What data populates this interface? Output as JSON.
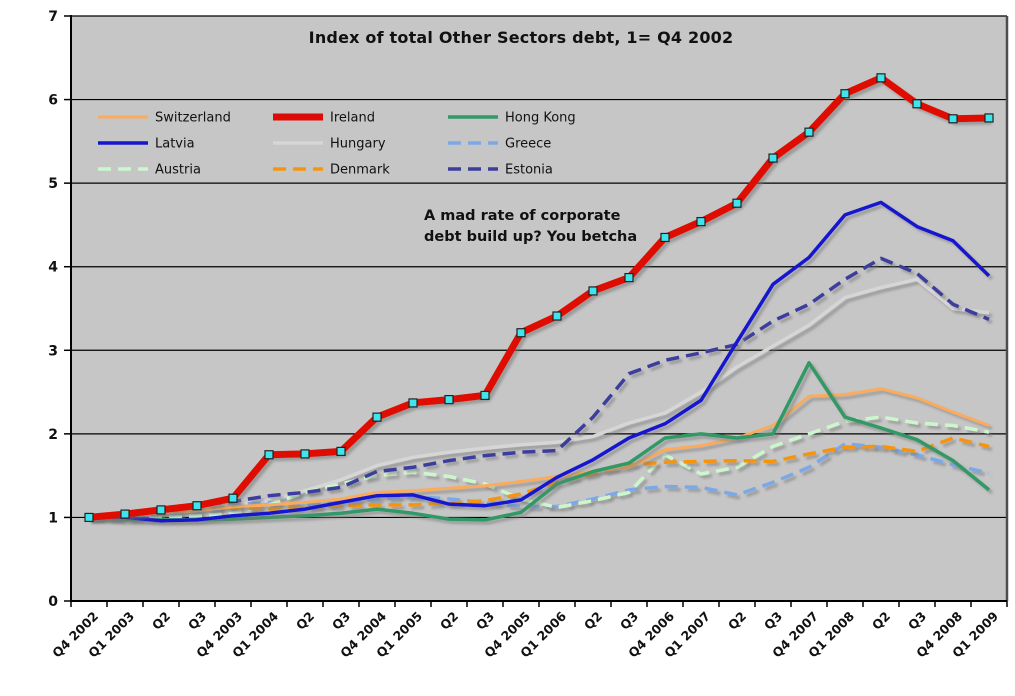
{
  "chart_data": {
    "type": "line",
    "title": "Index of total Other Sectors debt, 1= Q4 2002",
    "annotation_lines": [
      "A mad rate of corporate",
      "debt build up? You betcha"
    ],
    "categories": [
      "Q4 2002",
      "Q1 2003",
      "Q2",
      "Q3",
      "Q4 2003",
      "Q1 2004",
      "Q2",
      "Q3",
      "Q4 2004",
      "Q1 2005",
      "Q2",
      "Q3",
      "Q4 2005",
      "Q1 2006",
      "Q2",
      "Q3",
      "Q4 2006",
      "Q1 2007",
      "Q2",
      "Q3",
      "Q4 2007",
      "Q1 2008",
      "Q2",
      "Q3",
      "Q4 2008",
      "Q1 2009"
    ],
    "y_axis": {
      "min": 0,
      "max": 7,
      "step": 1,
      "tick_labels": [
        "0",
        "1",
        "2",
        "3",
        "4",
        "5",
        "6",
        "7"
      ]
    },
    "grid": true,
    "legend_position": "top-left-inside",
    "legend_order": [
      "Switzerland",
      "Ireland",
      "Hong Kong",
      "Latvia",
      "Hungary",
      "Greece",
      "Austria",
      "Denmark",
      "Estonia"
    ],
    "draw_order": [
      "Hungary",
      "Greece",
      "Austria",
      "Denmark",
      "Switzerland",
      "Hong Kong",
      "Estonia",
      "Latvia",
      "Ireland"
    ],
    "colors": {
      "plot_bg": "#c6c6c6",
      "gridline": "#000000",
      "axis": "#000000",
      "marker_fill": "#3fe4ec",
      "marker_border": "#222222"
    },
    "series": [
      {
        "name": "Switzerland",
        "color": "#faab5c",
        "style": "solid",
        "width": 3,
        "values": [
          1.0,
          1.02,
          1.05,
          1.08,
          1.13,
          1.15,
          1.18,
          1.22,
          1.3,
          1.32,
          1.35,
          1.38,
          1.43,
          1.49,
          1.55,
          1.6,
          1.81,
          1.86,
          1.95,
          2.1,
          2.45,
          2.47,
          2.54,
          2.43,
          2.26,
          2.1
        ]
      },
      {
        "name": "Ireland",
        "color": "#de0a05",
        "style": "solid",
        "width": 7,
        "marker": "square",
        "values": [
          1.0,
          1.04,
          1.09,
          1.14,
          1.23,
          1.75,
          1.76,
          1.79,
          2.2,
          2.37,
          2.41,
          2.46,
          3.21,
          3.41,
          3.71,
          3.87,
          4.35,
          4.54,
          4.76,
          5.3,
          5.61,
          6.07,
          6.26,
          5.95,
          5.77,
          5.78
        ]
      },
      {
        "name": "Hong Kong",
        "color": "#339966",
        "style": "solid",
        "width": 3.5,
        "values": [
          1.0,
          0.97,
          0.97,
          0.97,
          0.98,
          1.0,
          1.02,
          1.05,
          1.1,
          1.05,
          0.98,
          0.97,
          1.06,
          1.4,
          1.55,
          1.65,
          1.95,
          2.0,
          1.95,
          2.0,
          2.85,
          2.2,
          2.07,
          1.93,
          1.68,
          1.33
        ]
      },
      {
        "name": "Latvia",
        "color": "#1515cf",
        "style": "solid",
        "width": 3.5,
        "values": [
          1.0,
          1.0,
          0.96,
          0.97,
          1.02,
          1.05,
          1.1,
          1.18,
          1.26,
          1.27,
          1.16,
          1.14,
          1.21,
          1.48,
          1.69,
          1.95,
          2.12,
          2.4,
          3.1,
          3.79,
          4.11,
          4.62,
          4.77,
          4.48,
          4.31,
          3.89
        ]
      },
      {
        "name": "Hungary",
        "color": "#d6d6d6",
        "style": "solid",
        "width": 3.5,
        "values": [
          1.0,
          1.03,
          1.07,
          1.1,
          1.15,
          1.2,
          1.32,
          1.45,
          1.62,
          1.72,
          1.78,
          1.83,
          1.87,
          1.9,
          1.97,
          2.13,
          2.25,
          2.5,
          2.8,
          3.05,
          3.3,
          3.63,
          3.75,
          3.85,
          3.5,
          3.45
        ]
      },
      {
        "name": "Greece",
        "color": "#7ca9e6",
        "style": "dashed",
        "width": 3.5,
        "values": [
          1.0,
          1.01,
          1.02,
          1.04,
          1.15,
          1.18,
          1.15,
          1.18,
          1.22,
          1.25,
          1.22,
          1.18,
          1.13,
          1.13,
          1.22,
          1.33,
          1.37,
          1.36,
          1.27,
          1.42,
          1.6,
          1.88,
          1.84,
          1.75,
          1.63,
          1.53
        ]
      },
      {
        "name": "Austria",
        "color": "#ccf7cd",
        "style": "dashed",
        "width": 3.5,
        "values": [
          1.0,
          0.98,
          1.0,
          1.02,
          1.05,
          1.15,
          1.3,
          1.4,
          1.5,
          1.54,
          1.49,
          1.4,
          1.22,
          1.12,
          1.2,
          1.3,
          1.75,
          1.52,
          1.6,
          1.85,
          2.0,
          2.15,
          2.2,
          2.13,
          2.1,
          2.02
        ]
      },
      {
        "name": "Denmark",
        "color": "#f5950d",
        "style": "dashed",
        "width": 3.5,
        "values": [
          1.0,
          1.04,
          1.08,
          1.1,
          1.12,
          1.1,
          1.12,
          1.14,
          1.15,
          1.15,
          1.17,
          1.2,
          1.28,
          1.42,
          1.52,
          1.63,
          1.66,
          1.67,
          1.68,
          1.67,
          1.76,
          1.84,
          1.85,
          1.79,
          1.95,
          1.85
        ]
      },
      {
        "name": "Estonia",
        "color": "#3d3d9e",
        "style": "dashed",
        "width": 3.5,
        "values": [
          1.0,
          1.04,
          1.1,
          1.14,
          1.19,
          1.26,
          1.3,
          1.36,
          1.55,
          1.6,
          1.68,
          1.74,
          1.78,
          1.8,
          2.2,
          2.72,
          2.88,
          2.97,
          3.07,
          3.35,
          3.55,
          3.85,
          4.1,
          3.92,
          3.55,
          3.37
        ]
      }
    ]
  }
}
